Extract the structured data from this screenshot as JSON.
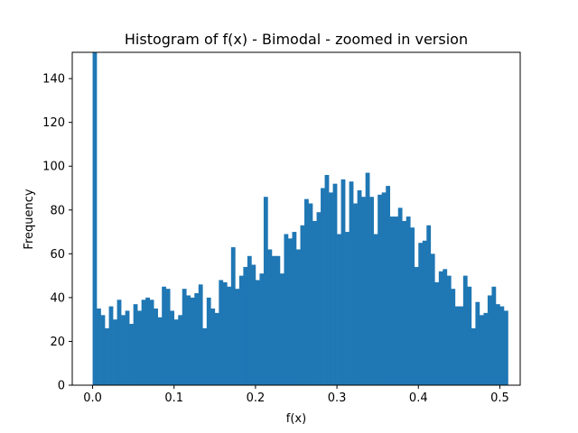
{
  "chart_data": {
    "type": "bar",
    "title": "Histogram of f(x) - Bimodal - zoomed in version",
    "xlabel": "f(x)",
    "ylabel": "Frequency",
    "xlim": [
      -0.025,
      0.525
    ],
    "ylim": [
      0,
      152
    ],
    "grid": false,
    "color": "#1f77b4",
    "bin_width": 0.005,
    "bin_start": 0.0,
    "xticks": [
      0.0,
      0.1,
      0.2,
      0.3,
      0.4,
      0.5
    ],
    "xtick_labels": [
      "0.0",
      "0.1",
      "0.2",
      "0.3",
      "0.4",
      "0.5"
    ],
    "yticks": [
      0,
      20,
      40,
      60,
      80,
      100,
      120,
      140
    ],
    "ytick_labels": [
      "0",
      "20",
      "40",
      "60",
      "80",
      "100",
      "120",
      "140"
    ],
    "values": [
      152,
      35,
      32,
      26,
      36,
      30,
      39,
      32,
      34,
      28,
      37,
      34,
      39,
      40,
      39,
      35,
      31,
      45,
      44,
      34,
      30,
      32,
      44,
      41,
      40,
      42,
      46,
      26,
      40,
      35,
      33,
      48,
      47,
      45,
      63,
      44,
      50,
      54,
      59,
      55,
      48,
      51,
      86,
      62,
      59,
      59,
      51,
      69,
      67,
      70,
      62,
      73,
      85,
      83,
      75,
      79,
      90,
      96,
      88,
      92,
      69,
      94,
      70,
      93,
      83,
      89,
      86,
      97,
      86,
      69,
      87,
      88,
      91,
      77,
      77,
      81,
      75,
      77,
      72,
      54,
      65,
      66,
      73,
      60,
      47,
      52,
      53,
      50,
      44,
      36,
      36,
      50,
      45,
      26,
      38,
      32,
      33,
      41,
      45,
      37,
      36,
      34
    ]
  }
}
